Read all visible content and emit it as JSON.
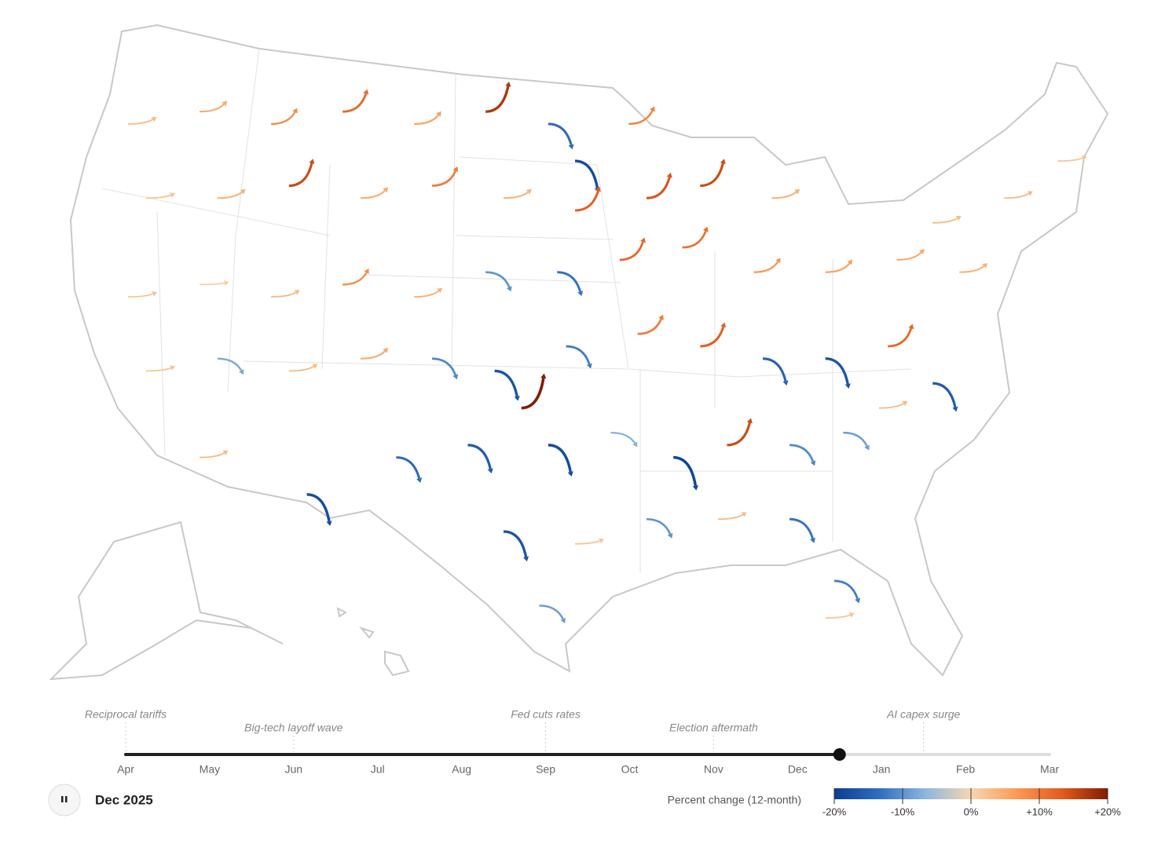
{
  "map": {
    "arrows": [
      {
        "lon": -121,
        "lat": 47,
        "value": 3
      },
      {
        "lon": -117,
        "lat": 47.5,
        "value": 5
      },
      {
        "lon": -113,
        "lat": 47,
        "value": 8
      },
      {
        "lon": -109,
        "lat": 47.5,
        "value": 12
      },
      {
        "lon": -105,
        "lat": 47,
        "value": 6
      },
      {
        "lon": -101,
        "lat": 47.5,
        "value": 17
      },
      {
        "lon": -97.5,
        "lat": 47,
        "value": -14
      },
      {
        "lon": -96,
        "lat": 45.5,
        "value": -18
      },
      {
        "lon": -93,
        "lat": 47,
        "value": 9
      },
      {
        "lon": -120,
        "lat": 44,
        "value": 2
      },
      {
        "lon": -116,
        "lat": 44,
        "value": 4
      },
      {
        "lon": -112,
        "lat": 44.5,
        "value": 15
      },
      {
        "lon": -108,
        "lat": 44,
        "value": 5
      },
      {
        "lon": -104,
        "lat": 44.5,
        "value": 10
      },
      {
        "lon": -100,
        "lat": 44,
        "value": 4
      },
      {
        "lon": -96,
        "lat": 43.5,
        "value": 13
      },
      {
        "lon": -92,
        "lat": 44,
        "value": 14
      },
      {
        "lon": -89,
        "lat": 44.5,
        "value": 15
      },
      {
        "lon": -85,
        "lat": 44,
        "value": 4
      },
      {
        "lon": -76,
        "lat": 43,
        "value": 3
      },
      {
        "lon": -72,
        "lat": 44,
        "value": 3
      },
      {
        "lon": -69,
        "lat": 45.5,
        "value": 2
      },
      {
        "lon": -121,
        "lat": 40,
        "value": 2
      },
      {
        "lon": -117,
        "lat": 40.5,
        "value": 1
      },
      {
        "lon": -113,
        "lat": 40,
        "value": 3
      },
      {
        "lon": -109,
        "lat": 40.5,
        "value": 8
      },
      {
        "lon": -105,
        "lat": 40,
        "value": 4
      },
      {
        "lon": -101,
        "lat": 41,
        "value": -10
      },
      {
        "lon": -97,
        "lat": 41,
        "value": -13
      },
      {
        "lon": -93.5,
        "lat": 41.5,
        "value": 12
      },
      {
        "lon": -90,
        "lat": 42,
        "value": 11
      },
      {
        "lon": -86,
        "lat": 41,
        "value": 7
      },
      {
        "lon": -82,
        "lat": 41,
        "value": 6
      },
      {
        "lon": -78,
        "lat": 41.5,
        "value": 5
      },
      {
        "lon": -74.5,
        "lat": 41,
        "value": 4
      },
      {
        "lon": -120,
        "lat": 37,
        "value": 2
      },
      {
        "lon": -116,
        "lat": 37.5,
        "value": -8
      },
      {
        "lon": -112,
        "lat": 37,
        "value": 3
      },
      {
        "lon": -108,
        "lat": 37.5,
        "value": 5
      },
      {
        "lon": -104,
        "lat": 37.5,
        "value": -11
      },
      {
        "lon": -100.5,
        "lat": 37,
        "value": -17
      },
      {
        "lon": -96.5,
        "lat": 38,
        "value": -12
      },
      {
        "lon": -92.5,
        "lat": 38.5,
        "value": 10
      },
      {
        "lon": -89,
        "lat": 38,
        "value": 13
      },
      {
        "lon": -85.5,
        "lat": 37.5,
        "value": -15
      },
      {
        "lon": -82,
        "lat": 37.5,
        "value": -17
      },
      {
        "lon": -78.5,
        "lat": 38,
        "value": 12
      },
      {
        "lon": -76,
        "lat": 36.5,
        "value": -16
      },
      {
        "lon": -117,
        "lat": 33.5,
        "value": 3
      },
      {
        "lon": -111,
        "lat": 32,
        "value": -18
      },
      {
        "lon": -106,
        "lat": 33.5,
        "value": -14
      },
      {
        "lon": -102,
        "lat": 34,
        "value": -16
      },
      {
        "lon": -99,
        "lat": 35.5,
        "value": 20
      },
      {
        "lon": -97.5,
        "lat": 34,
        "value": -18
      },
      {
        "lon": -94,
        "lat": 34.5,
        "value": -7
      },
      {
        "lon": -90.5,
        "lat": 33.5,
        "value": -19
      },
      {
        "lon": -87.5,
        "lat": 34,
        "value": 15
      },
      {
        "lon": -84,
        "lat": 34,
        "value": -11
      },
      {
        "lon": -81,
        "lat": 34.5,
        "value": -9
      },
      {
        "lon": -79,
        "lat": 35.5,
        "value": 3
      },
      {
        "lon": -100,
        "lat": 30.5,
        "value": -17
      },
      {
        "lon": -96,
        "lat": 30,
        "value": 2
      },
      {
        "lon": -92,
        "lat": 31,
        "value": -10
      },
      {
        "lon": -88,
        "lat": 31,
        "value": 3
      },
      {
        "lon": -84,
        "lat": 31,
        "value": -13
      },
      {
        "lon": -81.5,
        "lat": 28.5,
        "value": -12
      },
      {
        "lon": -98,
        "lat": 27.5,
        "value": -9
      },
      {
        "lon": -82,
        "lat": 27,
        "value": 2
      }
    ]
  },
  "timeline": {
    "months": [
      "Apr",
      "May",
      "Jun",
      "Jul",
      "Aug",
      "Sep",
      "Oct",
      "Nov",
      "Dec",
      "Jan",
      "Feb",
      "Mar"
    ],
    "progress": 8.5,
    "events": [
      {
        "label": "Reciprocal tariffs",
        "month": 0
      },
      {
        "label": "Big-tech layoff wave",
        "month": 2
      },
      {
        "label": "Fed cuts rates",
        "month": 5
      },
      {
        "label": "Election aftermath",
        "month": 7
      },
      {
        "label": "AI capex surge",
        "month": 9.5
      }
    ]
  },
  "player": {
    "date": "Dec 2025"
  },
  "legend": {
    "title": "Percent change (12-month)",
    "domain": [
      -20,
      20
    ],
    "colors": [
      "#0b3d91",
      "#2f6fc0",
      "#8db6dd",
      "#f6d7b0",
      "#fb9a55",
      "#e35a1c",
      "#7f1d04"
    ],
    "ticks": [
      {
        "value": -20,
        "label": "-20%"
      },
      {
        "value": -10,
        "label": "-10%"
      },
      {
        "value": 0,
        "label": "0%"
      },
      {
        "value": 10,
        "label": "+10%"
      },
      {
        "value": 20,
        "label": "+20%"
      }
    ]
  }
}
